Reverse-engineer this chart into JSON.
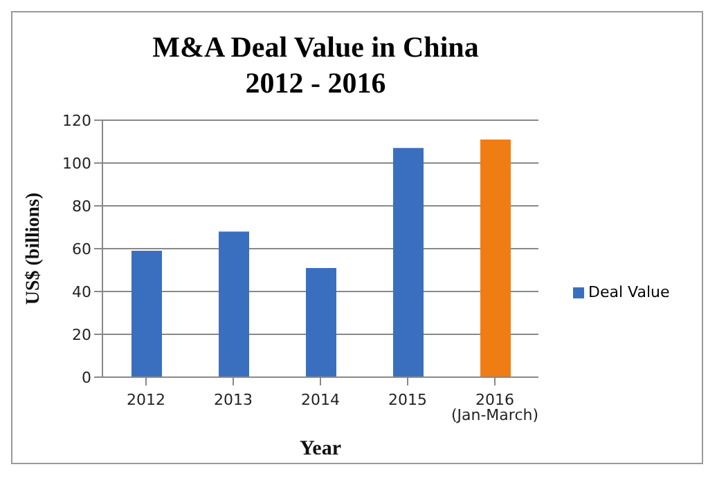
{
  "chart_data": {
    "type": "bar",
    "title": "M&A Deal Value in China",
    "subtitle": "2012 - 2016",
    "xlabel": "Year",
    "ylabel": "US$ (billions)",
    "categories": [
      "2012",
      "2013",
      "2014",
      "2015",
      "2016 (Jan-March)"
    ],
    "series": [
      {
        "name": "Deal Value",
        "color": "#3a6fbf",
        "colors": [
          "#3a6fbf",
          "#3a6fbf",
          "#3a6fbf",
          "#3a6fbf",
          "#f07c14"
        ],
        "values": [
          59,
          68,
          51,
          107,
          111
        ]
      }
    ],
    "ylim": [
      0,
      120
    ],
    "yticks": [
      0,
      20,
      40,
      60,
      80,
      100,
      120
    ],
    "grid": "y",
    "legend": "right"
  }
}
